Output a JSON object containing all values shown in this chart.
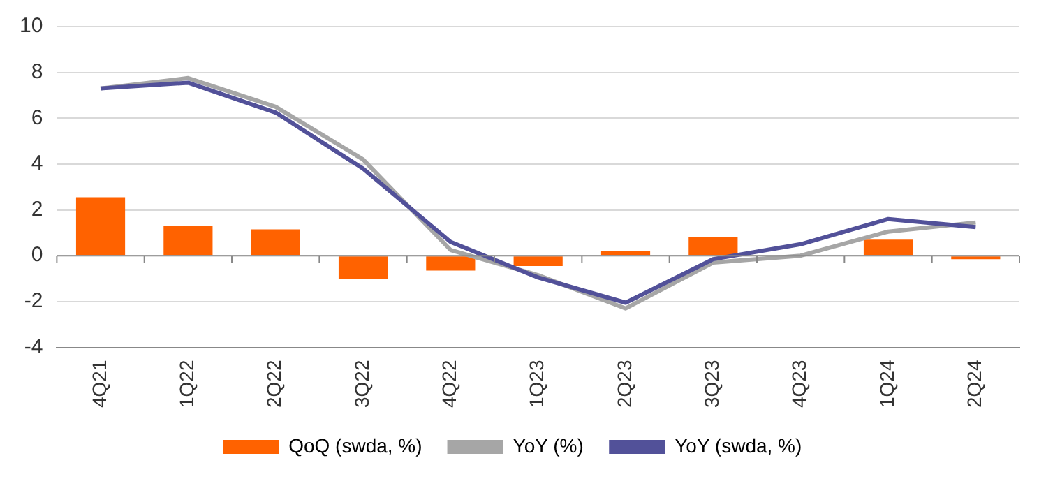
{
  "chart_data": {
    "type": "bar",
    "categories": [
      "4Q21",
      "1Q22",
      "2Q22",
      "3Q22",
      "4Q22",
      "1Q23",
      "2Q23",
      "3Q23",
      "4Q23",
      "1Q24",
      "2Q24"
    ],
    "series": [
      {
        "name": "QoQ (swda, %)",
        "color": "#ff6200",
        "values": [
          2.55,
          1.3,
          1.15,
          -1.0,
          -0.65,
          -0.45,
          0.2,
          0.8,
          null,
          0.7,
          -0.15
        ]
      },
      {
        "name": "YoY (%)",
        "type": "line",
        "color": "#a6a6a6",
        "values": [
          7.3,
          7.75,
          6.5,
          4.2,
          0.25,
          -0.85,
          -2.3,
          -0.3,
          0,
          1.05,
          1.45
        ]
      },
      {
        "name": "YoY (swda, %)",
        "type": "line",
        "color": "#525199",
        "values": [
          7.3,
          7.55,
          6.25,
          3.8,
          0.6,
          -0.95,
          -2.05,
          -0.15,
          0.5,
          1.6,
          1.25
        ]
      }
    ],
    "ylim": [
      -4,
      10
    ],
    "yticks": [
      -4,
      -2,
      0,
      2,
      4,
      6,
      8,
      10
    ],
    "grid": "y",
    "legend": "bottom",
    "marker": "none",
    "line_style": "solid"
  }
}
